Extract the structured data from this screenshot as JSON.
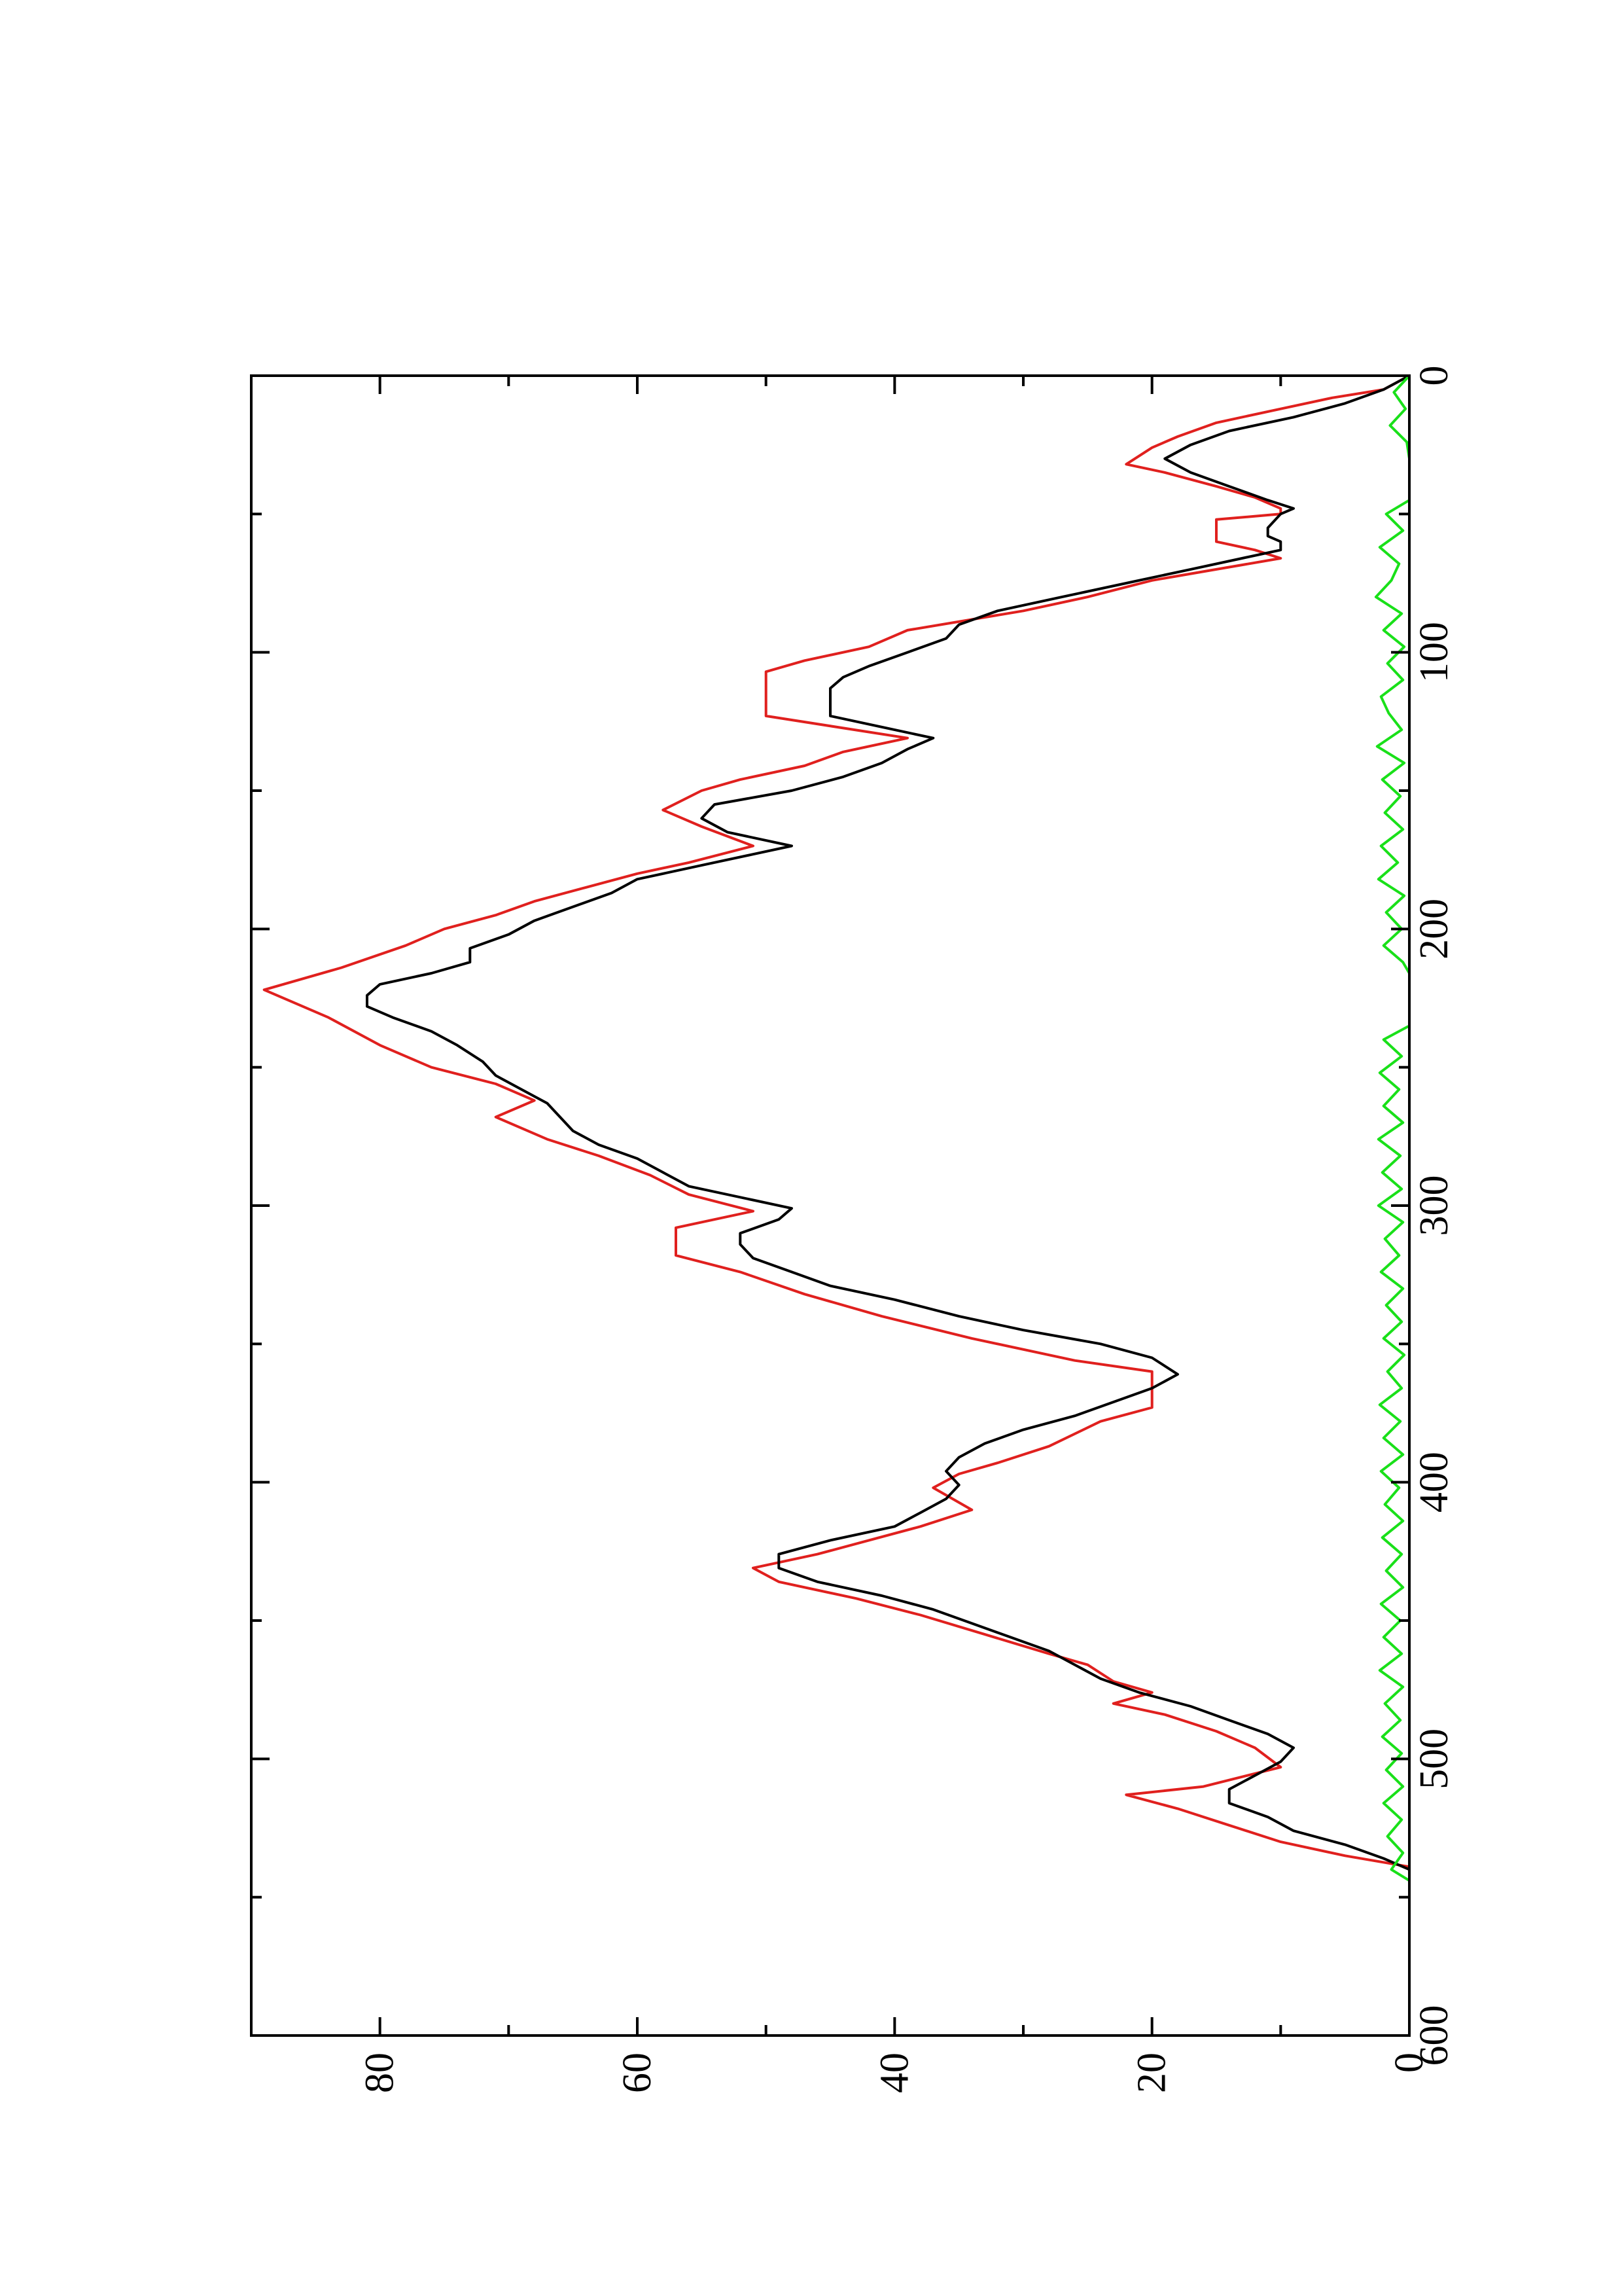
{
  "chart_data": {
    "type": "line",
    "orientation": "rotated-90-ccw",
    "title": "",
    "xlabel": "",
    "ylabel": "",
    "xlim": [
      0,
      600
    ],
    "ylim": [
      0,
      90
    ],
    "grid": false,
    "legend": "none",
    "x_ticks": [
      {
        "value": 0,
        "label": "0"
      },
      {
        "value": 100,
        "label": "100"
      },
      {
        "value": 200,
        "label": "200"
      },
      {
        "value": 300,
        "label": "300"
      },
      {
        "value": 400,
        "label": "400"
      },
      {
        "value": 500,
        "label": "500"
      },
      {
        "value": 600,
        "label": "600"
      }
    ],
    "x_minor_ticks": [
      50,
      150,
      250,
      350,
      450,
      550
    ],
    "y_ticks": [
      {
        "value": 0,
        "label": "0"
      },
      {
        "value": 20,
        "label": "20"
      },
      {
        "value": 40,
        "label": "40"
      },
      {
        "value": 60,
        "label": "60"
      },
      {
        "value": 80,
        "label": "80"
      }
    ],
    "y_minor_ticks": [
      10,
      30,
      50,
      70
    ],
    "series": [
      {
        "color": "#e0201e",
        "style": "step",
        "points": [
          [
            0,
            0
          ],
          [
            5,
            2
          ],
          [
            8,
            6
          ],
          [
            12,
            10
          ],
          [
            17,
            15
          ],
          [
            22,
            18
          ],
          [
            26,
            20
          ],
          [
            32,
            22
          ],
          [
            35,
            19
          ],
          [
            40,
            15
          ],
          [
            44,
            12
          ],
          [
            48,
            10
          ],
          [
            50,
            10
          ],
          [
            52,
            15
          ],
          [
            60,
            15
          ],
          [
            63,
            12
          ],
          [
            66,
            10
          ],
          [
            70,
            15
          ],
          [
            74,
            20
          ],
          [
            80,
            25
          ],
          [
            85,
            30
          ],
          [
            92,
            39
          ],
          [
            98,
            42
          ],
          [
            103,
            47
          ],
          [
            107,
            50
          ],
          [
            123,
            50
          ],
          [
            131,
            39
          ],
          [
            136,
            44
          ],
          [
            141,
            47
          ],
          [
            146,
            52
          ],
          [
            150,
            55
          ],
          [
            157,
            58
          ],
          [
            163,
            55
          ],
          [
            170,
            51
          ],
          [
            176,
            56
          ],
          [
            180,
            60
          ],
          [
            185,
            64
          ],
          [
            190,
            68
          ],
          [
            195,
            71
          ],
          [
            200,
            75
          ],
          [
            206,
            78
          ],
          [
            214,
            83
          ],
          [
            222,
            89
          ],
          [
            232,
            84
          ],
          [
            242,
            80
          ],
          [
            250,
            76
          ],
          [
            256,
            71
          ],
          [
            262,
            68
          ],
          [
            268,
            71
          ],
          [
            276,
            67
          ],
          [
            282,
            63
          ],
          [
            289,
            59
          ],
          [
            296,
            56
          ],
          [
            302,
            51
          ],
          [
            308,
            57
          ],
          [
            318,
            57
          ],
          [
            324,
            52
          ],
          [
            332,
            47
          ],
          [
            340,
            41
          ],
          [
            348,
            34
          ],
          [
            356,
            26
          ],
          [
            360,
            20
          ],
          [
            373,
            20
          ],
          [
            378,
            24
          ],
          [
            387,
            28
          ],
          [
            393,
            32
          ],
          [
            397,
            35
          ],
          [
            402,
            37
          ],
          [
            410,
            34
          ],
          [
            416,
            38
          ],
          [
            421,
            42
          ],
          [
            426,
            46
          ],
          [
            431,
            51
          ],
          [
            436,
            49
          ],
          [
            442,
            43
          ],
          [
            448,
            38
          ],
          [
            455,
            33
          ],
          [
            462,
            28
          ],
          [
            466,
            25
          ],
          [
            472,
            23
          ],
          [
            476,
            20
          ],
          [
            480,
            23
          ],
          [
            484,
            19
          ],
          [
            490,
            15
          ],
          [
            496,
            12
          ],
          [
            503,
            10
          ],
          [
            510,
            16
          ],
          [
            513,
            22
          ],
          [
            518,
            18
          ],
          [
            524,
            14
          ],
          [
            530,
            10
          ],
          [
            535,
            5
          ],
          [
            539,
            0
          ]
        ]
      },
      {
        "color": "#000000",
        "style": "line",
        "points": [
          [
            0,
            0
          ],
          [
            5,
            2
          ],
          [
            10,
            5
          ],
          [
            15,
            9
          ],
          [
            20,
            14
          ],
          [
            25,
            17
          ],
          [
            30,
            19
          ],
          [
            35,
            17
          ],
          [
            40,
            14
          ],
          [
            45,
            11
          ],
          [
            48,
            9
          ],
          [
            50,
            10
          ],
          [
            55,
            11
          ],
          [
            58,
            11
          ],
          [
            60,
            10
          ],
          [
            63,
            10
          ],
          [
            66,
            13
          ],
          [
            70,
            17
          ],
          [
            75,
            22
          ],
          [
            80,
            27
          ],
          [
            85,
            32
          ],
          [
            90,
            35
          ],
          [
            95,
            36
          ],
          [
            100,
            39
          ],
          [
            105,
            42
          ],
          [
            109,
            44
          ],
          [
            113,
            45
          ],
          [
            118,
            45
          ],
          [
            123,
            45
          ],
          [
            127,
            41
          ],
          [
            131,
            37
          ],
          [
            135,
            39
          ],
          [
            140,
            41
          ],
          [
            145,
            44
          ],
          [
            150,
            48
          ],
          [
            155,
            54
          ],
          [
            160,
            55
          ],
          [
            165,
            53
          ],
          [
            170,
            48
          ],
          [
            173,
            51
          ],
          [
            177,
            55
          ],
          [
            182,
            60
          ],
          [
            187,
            62
          ],
          [
            192,
            65
          ],
          [
            197,
            68
          ],
          [
            202,
            70
          ],
          [
            207,
            73
          ],
          [
            212,
            73
          ],
          [
            216,
            76
          ],
          [
            220,
            80
          ],
          [
            224,
            81
          ],
          [
            228,
            81
          ],
          [
            232,
            79
          ],
          [
            237,
            76
          ],
          [
            242,
            74
          ],
          [
            248,
            72
          ],
          [
            253,
            71
          ],
          [
            258,
            69
          ],
          [
            263,
            67
          ],
          [
            268,
            66
          ],
          [
            273,
            65
          ],
          [
            278,
            63
          ],
          [
            283,
            60
          ],
          [
            288,
            58
          ],
          [
            293,
            56
          ],
          [
            298,
            51
          ],
          [
            301,
            48
          ],
          [
            305,
            49
          ],
          [
            310,
            52
          ],
          [
            314,
            52
          ],
          [
            319,
            51
          ],
          [
            324,
            48
          ],
          [
            329,
            45
          ],
          [
            334,
            40
          ],
          [
            340,
            35
          ],
          [
            345,
            30
          ],
          [
            350,
            24
          ],
          [
            355,
            20
          ],
          [
            361,
            18
          ],
          [
            366,
            20
          ],
          [
            371,
            23
          ],
          [
            376,
            26
          ],
          [
            381,
            30
          ],
          [
            386,
            33
          ],
          [
            391,
            35
          ],
          [
            396,
            36
          ],
          [
            401,
            35
          ],
          [
            406,
            36
          ],
          [
            411,
            38
          ],
          [
            416,
            40
          ],
          [
            421,
            45
          ],
          [
            426,
            49
          ],
          [
            431,
            49
          ],
          [
            436,
            46
          ],
          [
            441,
            41
          ],
          [
            446,
            37
          ],
          [
            451,
            34
          ],
          [
            456,
            31
          ],
          [
            461,
            28
          ],
          [
            466,
            26
          ],
          [
            471,
            24
          ],
          [
            476,
            21
          ],
          [
            481,
            17
          ],
          [
            486,
            14
          ],
          [
            491,
            11
          ],
          [
            496,
            9
          ],
          [
            501,
            10
          ],
          [
            506,
            12
          ],
          [
            511,
            14
          ],
          [
            516,
            14
          ],
          [
            521,
            11
          ],
          [
            526,
            9
          ],
          [
            531,
            5
          ],
          [
            536,
            2
          ],
          [
            540,
            0
          ]
        ]
      },
      {
        "color": "#19e019",
        "style": "noise",
        "points": [
          [
            0,
            0
          ],
          [
            6,
            1.2
          ],
          [
            12,
            0.3
          ],
          [
            18,
            1.5
          ],
          [
            24,
            0.2
          ],
          [
            30,
            0
          ],
          [
            45,
            0
          ],
          [
            50,
            1.8
          ],
          [
            56,
            0.5
          ],
          [
            62,
            2.3
          ],
          [
            68,
            0.8
          ],
          [
            74,
            1.4
          ],
          [
            80,
            2.6
          ],
          [
            86,
            0.6
          ],
          [
            92,
            2.0
          ],
          [
            98,
            0.4
          ],
          [
            104,
            1.7
          ],
          [
            110,
            0.5
          ],
          [
            116,
            2.2
          ],
          [
            122,
            1.6
          ],
          [
            128,
            0.6
          ],
          [
            134,
            2.5
          ],
          [
            140,
            0.4
          ],
          [
            146,
            2.1
          ],
          [
            152,
            0.7
          ],
          [
            158,
            1.9
          ],
          [
            164,
            0.5
          ],
          [
            170,
            2.2
          ],
          [
            176,
            0.9
          ],
          [
            182,
            2.4
          ],
          [
            188,
            0.4
          ],
          [
            194,
            1.8
          ],
          [
            200,
            0.6
          ],
          [
            206,
            2.0
          ],
          [
            212,
            0.5
          ],
          [
            216,
            0
          ],
          [
            235,
            0
          ],
          [
            240,
            2.0
          ],
          [
            246,
            0.6
          ],
          [
            252,
            2.3
          ],
          [
            258,
            0.8
          ],
          [
            264,
            2.0
          ],
          [
            270,
            0.5
          ],
          [
            276,
            2.4
          ],
          [
            282,
            0.7
          ],
          [
            288,
            2.1
          ],
          [
            294,
            0.6
          ],
          [
            300,
            2.4
          ],
          [
            306,
            0.5
          ],
          [
            312,
            1.9
          ],
          [
            318,
            0.8
          ],
          [
            324,
            2.2
          ],
          [
            330,
            0.5
          ],
          [
            336,
            1.8
          ],
          [
            342,
            0.6
          ],
          [
            348,
            2.0
          ],
          [
            354,
            0.4
          ],
          [
            360,
            1.7
          ],
          [
            366,
            0.6
          ],
          [
            372,
            2.3
          ],
          [
            378,
            0.7
          ],
          [
            384,
            2.0
          ],
          [
            390,
            0.5
          ],
          [
            396,
            2.2
          ],
          [
            402,
            0.8
          ],
          [
            408,
            1.9
          ],
          [
            414,
            0.5
          ],
          [
            420,
            2.1
          ],
          [
            426,
            0.6
          ],
          [
            432,
            1.8
          ],
          [
            438,
            0.5
          ],
          [
            444,
            2.2
          ],
          [
            450,
            0.7
          ],
          [
            456,
            2.0
          ],
          [
            462,
            0.6
          ],
          [
            468,
            2.3
          ],
          [
            474,
            0.5
          ],
          [
            480,
            1.9
          ],
          [
            486,
            0.7
          ],
          [
            492,
            2.1
          ],
          [
            498,
            0.6
          ],
          [
            504,
            1.8
          ],
          [
            510,
            0.5
          ],
          [
            516,
            2.0
          ],
          [
            522,
            0.6
          ],
          [
            528,
            1.7
          ],
          [
            534,
            0.5
          ],
          [
            540,
            1.4
          ],
          [
            544,
            0
          ]
        ]
      }
    ]
  }
}
